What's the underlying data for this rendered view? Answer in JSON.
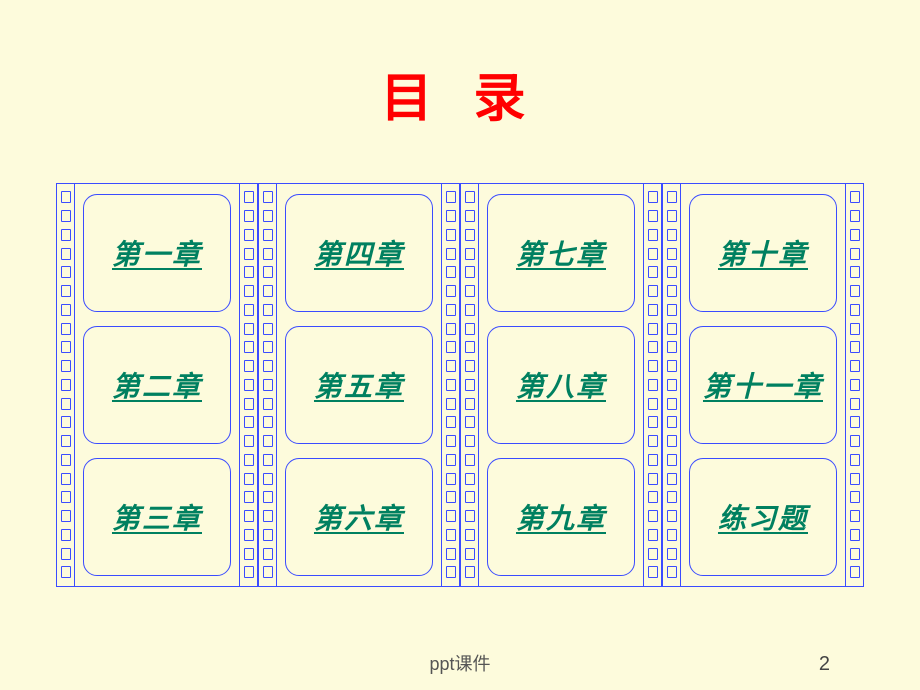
{
  "title": "目 录",
  "columns": [
    {
      "items": [
        "第一章",
        "第二章",
        "第三章"
      ]
    },
    {
      "items": [
        "第四章",
        "第五章",
        "第六章"
      ]
    },
    {
      "items": [
        "第七章",
        "第八章",
        "第九章"
      ]
    },
    {
      "items": [
        "第十章",
        "第十一章",
        "练习题"
      ]
    }
  ],
  "footer_label": "ppt课件",
  "page_number": "2",
  "colors": {
    "background": "#fdfbdc",
    "title": "#ff0000",
    "border": "#3b4cff",
    "link": "#008060"
  },
  "sprockets_per_side": 21
}
